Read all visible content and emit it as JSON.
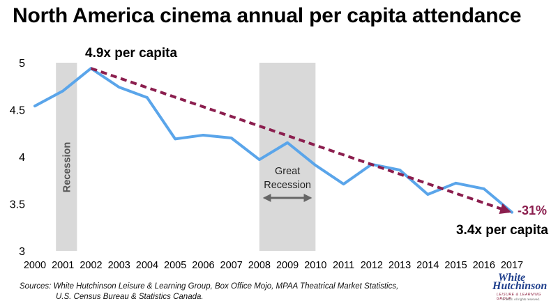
{
  "title": "North America cinema annual per capita attendance",
  "sources_line1": "Sources:  White Hutchinson Leisure & Learning Group, Box Office Mojo, MPAA Theatrical Market Statistics,",
  "sources_line2": "U.S. Census Bureau & Statistics Canada.",
  "logo": {
    "line1": "White",
    "line2": "Hutchinson",
    "line3": "LEISURE & LEARNING GROUP",
    "line4": "© 2018. All rights reserved."
  },
  "colors": {
    "line": "#5aa5ea",
    "trend": "#8b1e4e",
    "shade": "#d9d9d9",
    "arrow": "#666666"
  },
  "chart_data": {
    "type": "line",
    "title": "North America cinema annual per capita attendance",
    "xlabel": "",
    "ylabel": "",
    "x": [
      2000,
      2001,
      2002,
      2003,
      2004,
      2005,
      2006,
      2007,
      2008,
      2009,
      2010,
      2011,
      2012,
      2013,
      2014,
      2015,
      2016,
      2017
    ],
    "series": [
      {
        "values": [
          4.54,
          4.7,
          4.94,
          4.74,
          4.63,
          4.19,
          4.23,
          4.2,
          3.97,
          4.15,
          3.91,
          3.71,
          3.92,
          3.86,
          3.6,
          3.72,
          3.66,
          3.41
        ]
      }
    ],
    "trend": {
      "from": {
        "x": 2002,
        "y": 4.94
      },
      "to": {
        "x": 2017,
        "y": 3.41
      }
    },
    "ylim": [
      3,
      5
    ],
    "yticks": [
      "3",
      "3.5",
      "4",
      "4.5",
      "5"
    ],
    "grid": false,
    "shaded_periods": [
      {
        "start": 2000.75,
        "end": 2001.5,
        "label": "Recession"
      },
      {
        "start": 2008.0,
        "end": 2010.0,
        "label": "Great Recession"
      }
    ],
    "annotations": {
      "start": "4.9x per capita",
      "end": "3.4x per capita",
      "change": "-31%"
    }
  }
}
